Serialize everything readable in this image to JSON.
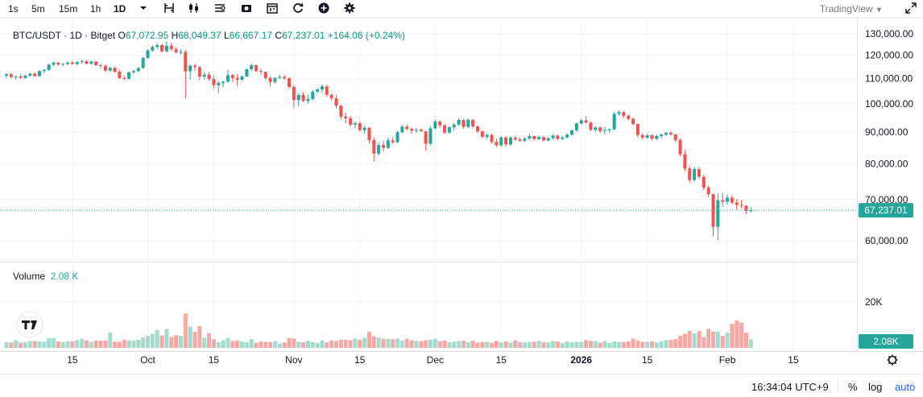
{
  "toolbar": {
    "timeframes": [
      "1s",
      "5m",
      "15m",
      "1h",
      "1D"
    ],
    "active_timeframe": "1D",
    "brand": "TradingView",
    "icons": [
      "chevron-down-icon",
      "bar-style-icon",
      "candles-icon",
      "indicators-icon",
      "camera-icon",
      "calendar-icon",
      "replay-icon",
      "add-icon",
      "settings-icon",
      "fullscreen-icon"
    ]
  },
  "legend": {
    "symbol": "BTC/USDT · 1D · Bitget",
    "o_label": "O",
    "o": "67,072.95",
    "h_label": "H",
    "h": "68,049.37",
    "l_label": "L",
    "l": "66,667.17",
    "c_label": "C",
    "c": "67,237.01",
    "change": "+164.06 (+0.24%)"
  },
  "volume_legend": {
    "label": "Volume",
    "value": "2.08 K"
  },
  "footer": {
    "time": "16:34:04 UTC+9",
    "percent": "%",
    "log": "log",
    "auto": "auto"
  },
  "chart_data": {
    "type": "candlestick",
    "price_axis": {
      "ticks": [
        60000,
        70000,
        80000,
        90000,
        100000,
        110000,
        120000,
        130000
      ],
      "tick_labels": [
        "60,000.00",
        "70,000.00",
        "80,000.00",
        "90,000.00",
        "100,000.00",
        "110,000.00",
        "120,000.00",
        "130,000.00"
      ],
      "last_price": 67237.01,
      "last_price_label": "67,237.01",
      "colors": {
        "up": "#26a69a",
        "down": "#ef5350",
        "last_line": "#26a69a"
      }
    },
    "volume_axis": {
      "ticks": [
        20000
      ],
      "tick_labels": [
        "20K"
      ],
      "last_volume_label": "2.08K"
    },
    "time_axis": {
      "labels": [
        "15",
        "Oct",
        "15",
        "Nov",
        "15",
        "Dec",
        "15",
        "2026",
        "15",
        "Feb",
        "15"
      ],
      "label_day_index": [
        14,
        30,
        44,
        61,
        75,
        91,
        105,
        122,
        136,
        153,
        167
      ],
      "bold": [
        "2026"
      ]
    },
    "start_index": 0,
    "candles": [
      [
        111200,
        112100,
        110200,
        111800
      ],
      [
        111800,
        112300,
        110000,
        110600
      ],
      [
        110600,
        111300,
        109500,
        110900
      ],
      [
        110900,
        111600,
        109800,
        110300
      ],
      [
        110300,
        111500,
        109900,
        111200
      ],
      [
        111200,
        112400,
        110800,
        112000
      ],
      [
        112000,
        112500,
        110700,
        111000
      ],
      [
        111000,
        113500,
        110800,
        113100
      ],
      [
        113100,
        114000,
        112200,
        113600
      ],
      [
        113600,
        116300,
        113200,
        115800
      ],
      [
        115800,
        117200,
        115300,
        116700
      ],
      [
        116700,
        117100,
        115400,
        115900
      ],
      [
        115900,
        116700,
        115100,
        116200
      ],
      [
        116200,
        117300,
        115600,
        116800
      ],
      [
        116800,
        117500,
        115900,
        116100
      ],
      [
        116100,
        117400,
        115600,
        117000
      ],
      [
        117000,
        117900,
        116300,
        117300
      ],
      [
        117300,
        117800,
        115900,
        116300
      ],
      [
        116300,
        117600,
        115800,
        117200
      ],
      [
        117200,
        117500,
        115200,
        115600
      ],
      [
        115600,
        116300,
        114300,
        115300
      ],
      [
        115300,
        115900,
        112700,
        113300
      ],
      [
        113300,
        114900,
        112900,
        114500
      ],
      [
        114500,
        114900,
        112500,
        112800
      ],
      [
        112800,
        113500,
        109900,
        110200
      ],
      [
        110200,
        111300,
        109300,
        109900
      ],
      [
        109900,
        112900,
        109500,
        112600
      ],
      [
        112600,
        113700,
        111900,
        113100
      ],
      [
        113100,
        114900,
        112600,
        114400
      ],
      [
        114400,
        119200,
        114000,
        118800
      ],
      [
        118800,
        122700,
        118300,
        122200
      ],
      [
        122200,
        124700,
        121500,
        123800
      ],
      [
        123800,
        125600,
        122900,
        124600
      ],
      [
        124600,
        125400,
        121100,
        121800
      ],
      [
        121800,
        126400,
        121300,
        124300
      ],
      [
        124300,
        125700,
        122100,
        122700
      ],
      [
        122700,
        123600,
        120900,
        121300
      ],
      [
        121300,
        122800,
        120300,
        121500
      ],
      [
        121500,
        122400,
        102000,
        113000
      ],
      [
        113000,
        116000,
        109500,
        115400
      ],
      [
        115400,
        116300,
        113300,
        114800
      ],
      [
        114800,
        115300,
        109200,
        110800
      ],
      [
        110800,
        112500,
        109500,
        111600
      ],
      [
        111600,
        112700,
        109200,
        109800
      ],
      [
        109800,
        111000,
        106000,
        107300
      ],
      [
        107300,
        108900,
        104200,
        108200
      ],
      [
        108200,
        109200,
        106500,
        108700
      ],
      [
        108700,
        113600,
        108400,
        111400
      ],
      [
        111400,
        111900,
        108600,
        110200
      ],
      [
        110200,
        111800,
        107000,
        109500
      ],
      [
        109500,
        111300,
        109100,
        110900
      ],
      [
        110900,
        114200,
        110600,
        113900
      ],
      [
        113900,
        116300,
        113200,
        115600
      ],
      [
        115600,
        115900,
        112600,
        113100
      ],
      [
        113100,
        114200,
        111600,
        112800
      ],
      [
        112800,
        112900,
        109500,
        110200
      ],
      [
        110200,
        110900,
        106700,
        108600
      ],
      [
        108600,
        110600,
        107900,
        110300
      ],
      [
        110300,
        111600,
        109800,
        110700
      ],
      [
        110700,
        111500,
        109500,
        110100
      ],
      [
        110100,
        110500,
        106100,
        106600
      ],
      [
        106600,
        107300,
        98800,
        101500
      ],
      [
        101500,
        103900,
        99100,
        103400
      ],
      [
        103400,
        104400,
        100700,
        101200
      ],
      [
        101200,
        103500,
        100100,
        101900
      ],
      [
        101900,
        105500,
        101300,
        104700
      ],
      [
        104700,
        106200,
        104000,
        105600
      ],
      [
        105600,
        107700,
        104300,
        106800
      ],
      [
        106800,
        107400,
        102700,
        103500
      ],
      [
        103500,
        104100,
        101400,
        102200
      ],
      [
        102200,
        103500,
        98400,
        99400
      ],
      [
        99400,
        99700,
        94400,
        95400
      ],
      [
        95400,
        96800,
        93100,
        94800
      ],
      [
        94800,
        95700,
        92000,
        92600
      ],
      [
        92600,
        93700,
        91300,
        93100
      ],
      [
        93100,
        93700,
        90200,
        90700
      ],
      [
        90700,
        92100,
        89700,
        91500
      ],
      [
        91500,
        91800,
        86400,
        87400
      ],
      [
        87400,
        88300,
        80600,
        83100
      ],
      [
        83100,
        86700,
        82500,
        85800
      ],
      [
        85800,
        87100,
        83600,
        84900
      ],
      [
        84900,
        88200,
        84500,
        87300
      ],
      [
        87300,
        88400,
        86100,
        86700
      ],
      [
        86700,
        90500,
        86400,
        90000
      ],
      [
        90000,
        92400,
        89600,
        91900
      ],
      [
        91900,
        92700,
        90500,
        91100
      ],
      [
        91100,
        91600,
        89400,
        90500
      ],
      [
        90500,
        91400,
        89700,
        90800
      ],
      [
        90800,
        91500,
        90200,
        90300
      ],
      [
        90300,
        90500,
        84000,
        86200
      ],
      [
        86200,
        92000,
        85800,
        91300
      ],
      [
        91300,
        94400,
        91000,
        93700
      ],
      [
        93700,
        94100,
        91600,
        92300
      ],
      [
        92300,
        92800,
        89300,
        89900
      ],
      [
        89900,
        92100,
        89500,
        91700
      ],
      [
        91700,
        93100,
        90500,
        92600
      ],
      [
        92600,
        94800,
        92200,
        94200
      ],
      [
        94200,
        94500,
        91200,
        91800
      ],
      [
        91800,
        94700,
        91400,
        94300
      ],
      [
        94300,
        94600,
        91400,
        92000
      ],
      [
        92000,
        92300,
        89700,
        90300
      ],
      [
        90300,
        90600,
        88000,
        88500
      ],
      [
        88500,
        89600,
        87700,
        89100
      ],
      [
        89100,
        89500,
        86300,
        86800
      ],
      [
        86800,
        87900,
        85200,
        85700
      ],
      [
        85700,
        88700,
        85300,
        88300
      ],
      [
        88300,
        88600,
        85300,
        86000
      ],
      [
        86000,
        88700,
        85500,
        88200
      ],
      [
        88200,
        88900,
        87200,
        87600
      ],
      [
        87600,
        88300,
        86800,
        87200
      ],
      [
        87200,
        88300,
        86800,
        87900
      ],
      [
        87900,
        89500,
        87600,
        88700
      ],
      [
        88700,
        88900,
        87300,
        87700
      ],
      [
        87700,
        88900,
        87400,
        88400
      ],
      [
        88400,
        88700,
        86900,
        87300
      ],
      [
        87300,
        88500,
        86900,
        88000
      ],
      [
        88000,
        89300,
        87600,
        88900
      ],
      [
        88900,
        89200,
        87500,
        87800
      ],
      [
        87800,
        88800,
        87400,
        88300
      ],
      [
        88300,
        89700,
        87800,
        89200
      ],
      [
        89200,
        91000,
        88800,
        90600
      ],
      [
        90600,
        93400,
        90200,
        93000
      ],
      [
        93000,
        94600,
        92500,
        94100
      ],
      [
        94100,
        95600,
        92900,
        93300
      ],
      [
        93300,
        93800,
        90300,
        90800
      ],
      [
        90800,
        92100,
        90100,
        91600
      ],
      [
        91600,
        92000,
        89700,
        90400
      ],
      [
        90400,
        91900,
        89300,
        90700
      ],
      [
        90700,
        91300,
        89800,
        91000
      ],
      [
        91000,
        97000,
        90600,
        96400
      ],
      [
        96400,
        97600,
        95800,
        97000
      ],
      [
        97000,
        97400,
        95100,
        95700
      ],
      [
        95700,
        96300,
        94100,
        94600
      ],
      [
        94600,
        95200,
        92400,
        92800
      ],
      [
        92800,
        92900,
        88200,
        89100
      ],
      [
        89100,
        89600,
        87600,
        88200
      ],
      [
        88200,
        89400,
        87800,
        89000
      ],
      [
        89000,
        89300,
        87400,
        87800
      ],
      [
        87800,
        89200,
        87500,
        88700
      ],
      [
        88700,
        89600,
        88000,
        89200
      ],
      [
        89200,
        90200,
        88600,
        89800
      ],
      [
        89800,
        90400,
        88900,
        89300
      ],
      [
        89300,
        89500,
        86700,
        87400
      ],
      [
        87400,
        88000,
        82400,
        82900
      ],
      [
        82900,
        84200,
        77800,
        78600
      ],
      [
        78600,
        79400,
        74500,
        75300
      ],
      [
        75300,
        79000,
        74900,
        78400
      ],
      [
        78400,
        79100,
        75500,
        76200
      ],
      [
        76200,
        76700,
        72500,
        73200
      ],
      [
        73200,
        73800,
        70600,
        71400
      ],
      [
        71400,
        71600,
        61000,
        63200
      ],
      [
        63200,
        71700,
        60200,
        69800
      ],
      [
        69800,
        71800,
        68100,
        69400
      ],
      [
        69400,
        71300,
        68600,
        70500
      ],
      [
        70500,
        71200,
        68700,
        69200
      ],
      [
        69200,
        70200,
        67300,
        68600
      ],
      [
        68600,
        69800,
        67700,
        68400
      ],
      [
        68400,
        68500,
        66300,
        67073
      ],
      [
        67073,
        68049,
        66667,
        67237
      ]
    ],
    "volumes": [
      2500,
      2300,
      3300,
      2200,
      2600,
      3000,
      3000,
      2900,
      2700,
      4300,
      4300,
      2800,
      2400,
      2900,
      2900,
      3400,
      4000,
      3300,
      2600,
      3200,
      3100,
      3300,
      6700,
      2700,
      2600,
      3500,
      3200,
      3100,
      3500,
      4500,
      5200,
      6100,
      7700,
      5400,
      8300,
      4800,
      5500,
      5200,
      15000,
      9300,
      7000,
      9500,
      4400,
      6400,
      3800,
      2400,
      3400,
      4300,
      3000,
      3100,
      2700,
      2400,
      3800,
      2200,
      2800,
      2600,
      2500,
      2900,
      1900,
      2400,
      4300,
      4100,
      2600,
      2400,
      3100,
      2500,
      2100,
      3300,
      2400,
      3300,
      3000,
      3500,
      3600,
      3400,
      4000,
      3600,
      4400,
      7100,
      5000,
      4500,
      4000,
      4000,
      3800,
      4100,
      3200,
      4000,
      3300,
      3100,
      2900,
      3300,
      3500,
      4000,
      2900,
      3200,
      2400,
      2700,
      3000,
      3100,
      2400,
      3100,
      2300,
      2500,
      2600,
      2200,
      3000,
      2300,
      2800,
      2300,
      3300,
      2400,
      2300,
      2600,
      2700,
      3000,
      2500,
      2300,
      3000,
      2700,
      2100,
      2800,
      2500,
      2600,
      2600,
      3400,
      3100,
      2900,
      2200,
      3000,
      2100,
      2800,
      2500,
      2500,
      2800,
      4000,
      3200,
      2600,
      2700,
      2900,
      2300,
      2900,
      3400,
      3500,
      3800,
      5300,
      6200,
      7400,
      6300,
      7300,
      4700,
      8300,
      7100,
      7000,
      5200,
      6700,
      10500,
      12000,
      11000,
      6600,
      3700,
      5600,
      4400,
      6400,
      2080
    ]
  }
}
